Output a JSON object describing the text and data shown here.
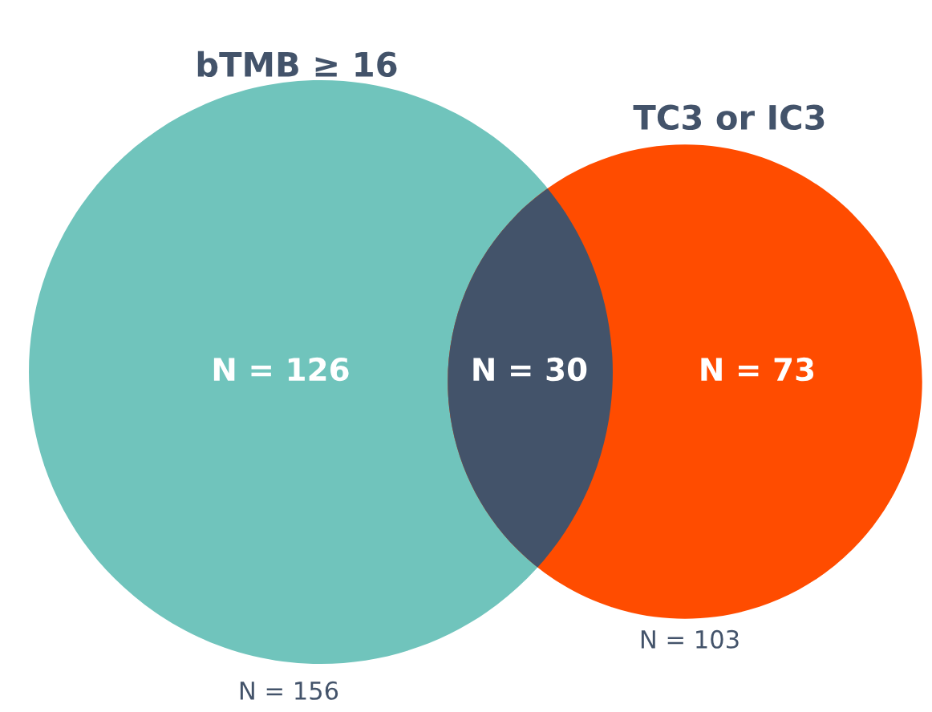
{
  "chart_data": {
    "type": "other",
    "categories": [
      "bTMB ≥ 16",
      null,
      "TC3 or IC3"
    ],
    "values": [
      126,
      30,
      73
    ],
    "value_labels": [
      "N = 126",
      "N = 30",
      "N = 73"
    ],
    "colors": [
      "#70c4bc",
      "#43536a",
      "#ff4c00"
    ],
    "annotations": [
      "N = 156",
      "N = 103"
    ]
  }
}
